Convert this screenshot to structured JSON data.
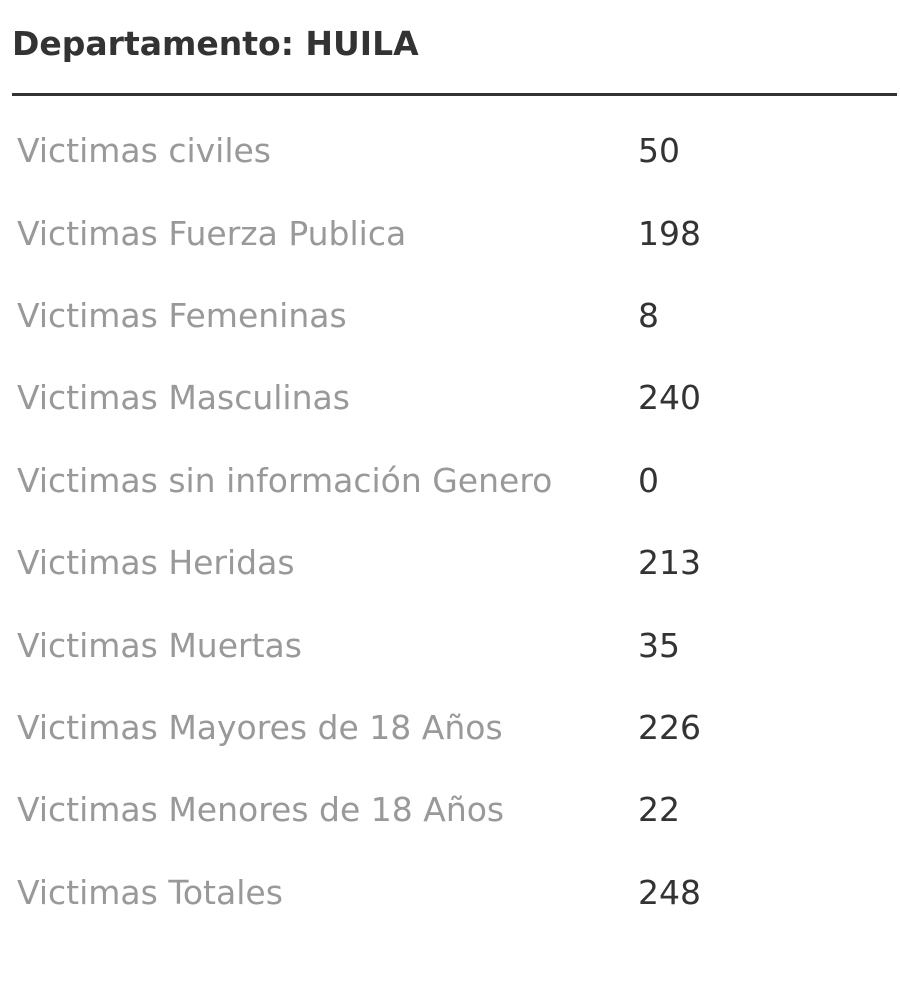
{
  "panel": {
    "title": "Departamento: HUILA"
  },
  "stats": [
    {
      "label": "Victimas civiles",
      "value": "50"
    },
    {
      "label": "Victimas Fuerza Publica",
      "value": "198"
    },
    {
      "label": "Victimas Femeninas",
      "value": "8"
    },
    {
      "label": "Victimas Masculinas",
      "value": "240"
    },
    {
      "label": "Victimas sin información Genero",
      "value": "0"
    },
    {
      "label": "Victimas Heridas",
      "value": "213"
    },
    {
      "label": "Victimas Muertas",
      "value": "35"
    },
    {
      "label": "Victimas Mayores de 18 Años",
      "value": "226"
    },
    {
      "label": "Victimas Menores de 18 Años",
      "value": "22"
    },
    {
      "label": "Victimas Totales",
      "value": "248"
    }
  ],
  "colors": {
    "title": "#333333",
    "label": "#999999",
    "value": "#333333",
    "divider": "#333333"
  }
}
